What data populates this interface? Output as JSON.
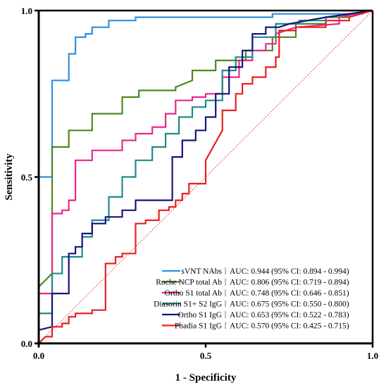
{
  "chart_data": {
    "type": "line",
    "title": "",
    "xlabel": "1 - Specificity",
    "ylabel": "Sensitivity",
    "xlim": [
      0,
      1
    ],
    "ylim": [
      0,
      1
    ],
    "xticks": [
      "0.0",
      "0.5",
      "1.0"
    ],
    "yticks": [
      "0.0",
      "0.5",
      "1.0"
    ],
    "grid": false,
    "legend_position": "bottom-right",
    "reference_line": {
      "color": "#e03030",
      "style": "dotted",
      "points": [
        [
          0,
          0
        ],
        [
          1,
          1
        ]
      ]
    },
    "series": [
      {
        "name": "sVNT NAbs",
        "auc": "AUC: 0.944 (95% CI: 0.894 - 0.994)",
        "color": "#2e8fe0",
        "points": [
          [
            0,
            0
          ],
          [
            0,
            0.5
          ],
          [
            0.04,
            0.5
          ],
          [
            0.04,
            0.79
          ],
          [
            0.09,
            0.79
          ],
          [
            0.09,
            0.87
          ],
          [
            0.11,
            0.87
          ],
          [
            0.11,
            0.92
          ],
          [
            0.14,
            0.92
          ],
          [
            0.14,
            0.93
          ],
          [
            0.16,
            0.93
          ],
          [
            0.16,
            0.95
          ],
          [
            0.21,
            0.95
          ],
          [
            0.21,
            0.97
          ],
          [
            0.29,
            0.97
          ],
          [
            0.29,
            0.98
          ],
          [
            0.7,
            0.98
          ],
          [
            0.7,
            0.99
          ],
          [
            0.97,
            0.99
          ],
          [
            0.97,
            1.0
          ],
          [
            1,
            1
          ]
        ]
      },
      {
        "name": "Roche NCP total Ab",
        "auc": "AUC: 0.806 (95% CI: 0.719 - 0.894)",
        "color": "#4a8a1c",
        "points": [
          [
            0,
            0.17
          ],
          [
            0.04,
            0.21
          ],
          [
            0.04,
            0.59
          ],
          [
            0.09,
            0.59
          ],
          [
            0.09,
            0.64
          ],
          [
            0.16,
            0.64
          ],
          [
            0.16,
            0.69
          ],
          [
            0.25,
            0.69
          ],
          [
            0.25,
            0.74
          ],
          [
            0.3,
            0.74
          ],
          [
            0.3,
            0.76
          ],
          [
            0.41,
            0.76
          ],
          [
            0.41,
            0.77
          ],
          [
            0.46,
            0.79
          ],
          [
            0.46,
            0.82
          ],
          [
            0.53,
            0.82
          ],
          [
            0.53,
            0.85
          ],
          [
            0.62,
            0.85
          ],
          [
            0.62,
            0.88
          ],
          [
            0.7,
            0.88
          ],
          [
            0.7,
            0.92
          ],
          [
            0.77,
            0.92
          ],
          [
            0.77,
            0.96
          ],
          [
            0.86,
            0.96
          ],
          [
            0.86,
            0.98
          ],
          [
            0.93,
            0.98
          ],
          [
            0.93,
            0.99
          ],
          [
            1,
            1
          ]
        ]
      },
      {
        "name": "Ortho S1 total Ab",
        "auc": "AUC: 0.748 (95% CI: 0.646 - 0.851)",
        "color": "#e6288c",
        "points": [
          [
            0,
            0.15
          ],
          [
            0.04,
            0.15
          ],
          [
            0.04,
            0.39
          ],
          [
            0.07,
            0.39
          ],
          [
            0.07,
            0.4
          ],
          [
            0.09,
            0.4
          ],
          [
            0.09,
            0.43
          ],
          [
            0.11,
            0.43
          ],
          [
            0.11,
            0.55
          ],
          [
            0.16,
            0.55
          ],
          [
            0.16,
            0.58
          ],
          [
            0.25,
            0.58
          ],
          [
            0.25,
            0.61
          ],
          [
            0.29,
            0.61
          ],
          [
            0.29,
            0.63
          ],
          [
            0.34,
            0.63
          ],
          [
            0.34,
            0.65
          ],
          [
            0.38,
            0.65
          ],
          [
            0.38,
            0.69
          ],
          [
            0.41,
            0.69
          ],
          [
            0.41,
            0.73
          ],
          [
            0.46,
            0.73
          ],
          [
            0.46,
            0.74
          ],
          [
            0.5,
            0.74
          ],
          [
            0.5,
            0.75
          ],
          [
            0.55,
            0.75
          ],
          [
            0.55,
            0.8
          ],
          [
            0.6,
            0.8
          ],
          [
            0.6,
            0.85
          ],
          [
            0.64,
            0.85
          ],
          [
            0.64,
            0.88
          ],
          [
            0.68,
            0.88
          ],
          [
            0.68,
            0.9
          ],
          [
            0.71,
            0.9
          ],
          [
            0.71,
            0.93
          ],
          [
            0.77,
            0.95
          ],
          [
            0.9,
            0.96
          ],
          [
            0.9,
            0.98
          ],
          [
            1,
            1
          ]
        ]
      },
      {
        "name": "Diasorin S1+ S2 IgG",
        "auc": "AUC: 0.675 (95% CI: 0.550 - 0.800)",
        "color": "#1e8a8a",
        "points": [
          [
            0,
            0.09
          ],
          [
            0.04,
            0.09
          ],
          [
            0.04,
            0.21
          ],
          [
            0.07,
            0.21
          ],
          [
            0.07,
            0.26
          ],
          [
            0.13,
            0.26
          ],
          [
            0.13,
            0.32
          ],
          [
            0.16,
            0.32
          ],
          [
            0.16,
            0.37
          ],
          [
            0.21,
            0.37
          ],
          [
            0.21,
            0.44
          ],
          [
            0.25,
            0.44
          ],
          [
            0.25,
            0.5
          ],
          [
            0.29,
            0.5
          ],
          [
            0.29,
            0.55
          ],
          [
            0.34,
            0.55
          ],
          [
            0.34,
            0.59
          ],
          [
            0.38,
            0.59
          ],
          [
            0.38,
            0.63
          ],
          [
            0.42,
            0.63
          ],
          [
            0.42,
            0.68
          ],
          [
            0.46,
            0.68
          ],
          [
            0.46,
            0.71
          ],
          [
            0.5,
            0.71
          ],
          [
            0.5,
            0.73
          ],
          [
            0.55,
            0.73
          ],
          [
            0.55,
            0.82
          ],
          [
            0.59,
            0.82
          ],
          [
            0.59,
            0.86
          ],
          [
            0.64,
            0.86
          ],
          [
            0.64,
            0.92
          ],
          [
            0.71,
            0.92
          ],
          [
            0.71,
            0.96
          ],
          [
            0.78,
            0.96
          ],
          [
            0.78,
            0.97
          ],
          [
            0.86,
            0.97
          ],
          [
            0.86,
            0.98
          ],
          [
            1,
            1
          ]
        ]
      },
      {
        "name": "Ortho S1 IgG",
        "auc": "AUC: 0.653 (95% CI: 0.522 - 0.783)",
        "color": "#15157a",
        "points": [
          [
            0,
            0.04
          ],
          [
            0.04,
            0.05
          ],
          [
            0.04,
            0.15
          ],
          [
            0.09,
            0.15
          ],
          [
            0.09,
            0.27
          ],
          [
            0.11,
            0.27
          ],
          [
            0.11,
            0.29
          ],
          [
            0.13,
            0.29
          ],
          [
            0.13,
            0.33
          ],
          [
            0.16,
            0.33
          ],
          [
            0.16,
            0.36
          ],
          [
            0.2,
            0.36
          ],
          [
            0.2,
            0.38
          ],
          [
            0.25,
            0.38
          ],
          [
            0.25,
            0.4
          ],
          [
            0.29,
            0.4
          ],
          [
            0.29,
            0.43
          ],
          [
            0.4,
            0.43
          ],
          [
            0.4,
            0.56
          ],
          [
            0.43,
            0.56
          ],
          [
            0.43,
            0.61
          ],
          [
            0.47,
            0.61
          ],
          [
            0.47,
            0.64
          ],
          [
            0.5,
            0.64
          ],
          [
            0.5,
            0.68
          ],
          [
            0.53,
            0.68
          ],
          [
            0.53,
            0.75
          ],
          [
            0.57,
            0.75
          ],
          [
            0.57,
            0.83
          ],
          [
            0.61,
            0.83
          ],
          [
            0.61,
            0.88
          ],
          [
            0.64,
            0.88
          ],
          [
            0.64,
            0.93
          ],
          [
            0.68,
            0.93
          ],
          [
            0.68,
            0.95
          ],
          [
            0.72,
            0.95
          ],
          [
            0.75,
            0.96
          ],
          [
            0.86,
            0.98
          ],
          [
            1,
            1
          ]
        ]
      },
      {
        "name": "Phadia S1 IgG",
        "auc": "AUC: 0.570 (95% CI: 0.425 - 0.715)",
        "color": "#e82020",
        "points": [
          [
            0,
            0
          ],
          [
            0.02,
            0.02
          ],
          [
            0.04,
            0.02
          ],
          [
            0.04,
            0.05
          ],
          [
            0.07,
            0.05
          ],
          [
            0.07,
            0.06
          ],
          [
            0.09,
            0.06
          ],
          [
            0.09,
            0.08
          ],
          [
            0.11,
            0.08
          ],
          [
            0.11,
            0.09
          ],
          [
            0.16,
            0.09
          ],
          [
            0.16,
            0.1
          ],
          [
            0.2,
            0.1
          ],
          [
            0.2,
            0.24
          ],
          [
            0.23,
            0.24
          ],
          [
            0.23,
            0.26
          ],
          [
            0.25,
            0.26
          ],
          [
            0.25,
            0.27
          ],
          [
            0.29,
            0.27
          ],
          [
            0.29,
            0.36
          ],
          [
            0.32,
            0.36
          ],
          [
            0.32,
            0.37
          ],
          [
            0.36,
            0.37
          ],
          [
            0.36,
            0.4
          ],
          [
            0.39,
            0.4
          ],
          [
            0.39,
            0.41
          ],
          [
            0.41,
            0.41
          ],
          [
            0.41,
            0.43
          ],
          [
            0.43,
            0.43
          ],
          [
            0.43,
            0.45
          ],
          [
            0.45,
            0.45
          ],
          [
            0.45,
            0.48
          ],
          [
            0.5,
            0.48
          ],
          [
            0.5,
            0.55
          ],
          [
            0.55,
            0.64
          ],
          [
            0.55,
            0.7
          ],
          [
            0.59,
            0.7
          ],
          [
            0.59,
            0.75
          ],
          [
            0.61,
            0.75
          ],
          [
            0.61,
            0.78
          ],
          [
            0.64,
            0.78
          ],
          [
            0.64,
            0.8
          ],
          [
            0.68,
            0.8
          ],
          [
            0.68,
            0.83
          ],
          [
            0.71,
            0.83
          ],
          [
            0.71,
            0.86
          ],
          [
            0.72,
            0.86
          ],
          [
            0.72,
            0.94
          ],
          [
            0.77,
            0.94
          ],
          [
            0.77,
            0.95
          ],
          [
            0.86,
            0.95
          ],
          [
            0.86,
            0.97
          ],
          [
            0.93,
            0.97
          ],
          [
            0.93,
            0.98
          ],
          [
            1,
            1
          ]
        ]
      }
    ]
  }
}
